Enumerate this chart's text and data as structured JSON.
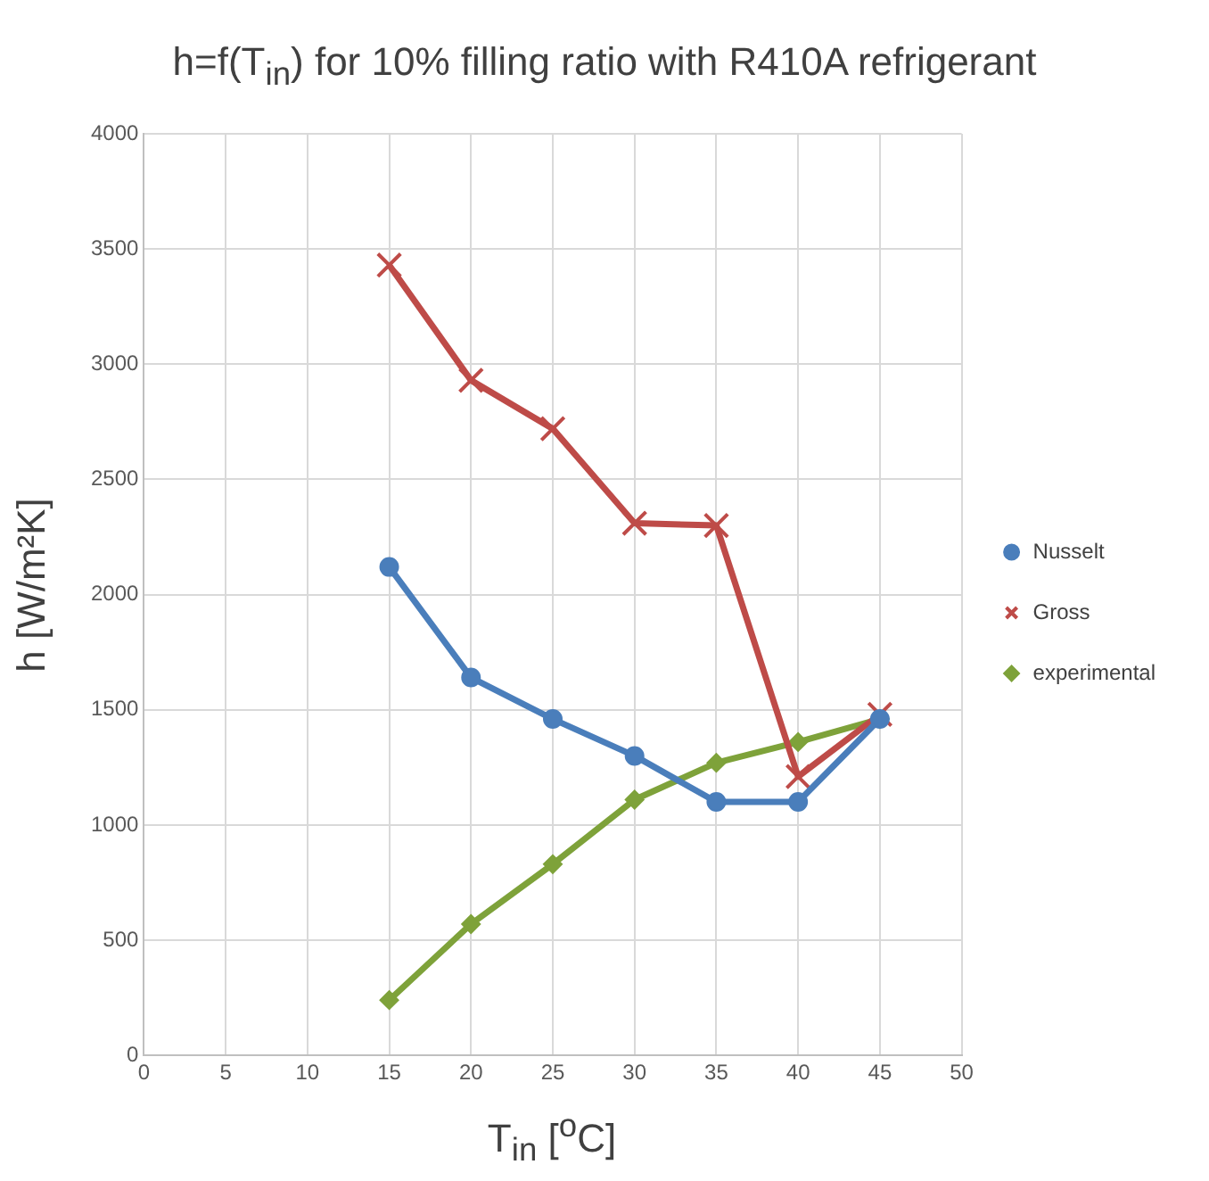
{
  "chart_data": {
    "type": "line",
    "title": "h=f(T$_{in}$) for 10% filling ratio with R410A refrigerant",
    "xlabel": "T$_{in}$ [$^{o}$C]",
    "ylabel": "h [W/m²K]",
    "x": [
      15,
      20,
      25,
      30,
      35,
      40,
      45
    ],
    "series": [
      {
        "name": "Nusselt",
        "color": "#4a7ebb",
        "marker": "circle",
        "values": [
          2120,
          1640,
          1460,
          1300,
          1100,
          1100,
          1460
        ]
      },
      {
        "name": "Gross",
        "color": "#be4b48",
        "marker": "cross",
        "values": [
          3430,
          2930,
          2720,
          2310,
          2300,
          1210,
          1480
        ]
      },
      {
        "name": "experimental",
        "color": "#7ea23a",
        "marker": "diamond",
        "values": [
          240,
          570,
          830,
          1110,
          1270,
          1360,
          1460
        ]
      }
    ],
    "xlim": [
      0,
      50
    ],
    "xticks": [
      0,
      5,
      10,
      15,
      20,
      25,
      30,
      35,
      40,
      45,
      50
    ],
    "ylim": [
      0,
      4000
    ],
    "yticks": [
      0,
      500,
      1000,
      1500,
      2000,
      2500,
      3000,
      3500,
      4000
    ],
    "grid": true,
    "legend": "right",
    "line_style": "solid"
  }
}
